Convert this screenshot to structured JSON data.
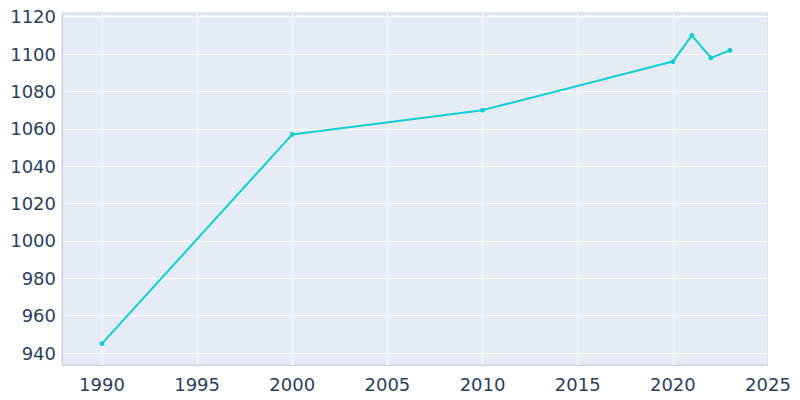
{
  "chart_data": {
    "type": "line",
    "x": [
      1990,
      2000,
      2010,
      2020,
      2021,
      2022,
      2023
    ],
    "values": [
      945,
      1057,
      1070,
      1096,
      1110,
      1098,
      1102
    ],
    "color": "#0fcfcf",
    "marker": "circle",
    "xlim": [
      1987.9,
      2025
    ],
    "xticks": [
      1990,
      1995,
      2000,
      2005,
      2010,
      2015,
      2020,
      2025
    ],
    "ylim": [
      933.6,
      1122
    ],
    "yticks": [
      940,
      960,
      980,
      1000,
      1020,
      1040,
      1060,
      1080,
      1100,
      1120
    ],
    "grid": true
  }
}
